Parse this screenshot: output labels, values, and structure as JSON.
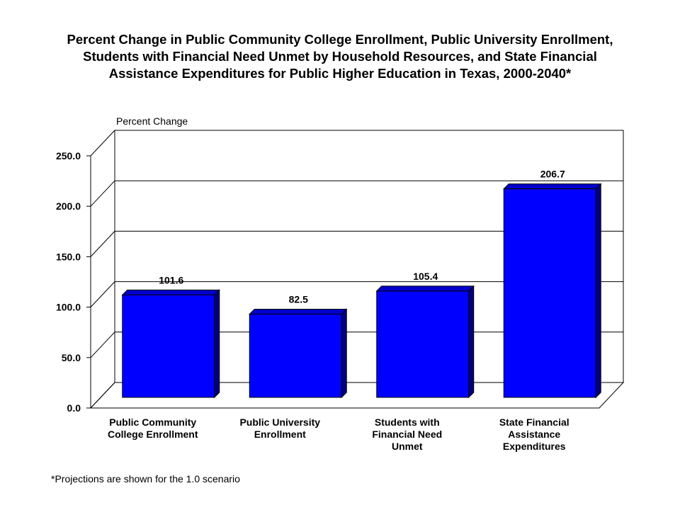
{
  "chart_data": {
    "type": "bar",
    "title_lines": [
      "Percent Change in Public Community College Enrollment, Public University Enrollment,",
      "Students with Financial Need Unmet by Household Resources, and State Financial",
      "Assistance Expenditures for Public Higher Education in Texas, 2000-2040*"
    ],
    "ylabel": "Percent Change",
    "xlabel": "",
    "categories": [
      [
        "Public Community",
        "College Enrollment"
      ],
      [
        "Public University",
        "Enrollment"
      ],
      [
        "Students with",
        "Financial Need",
        "Unmet"
      ],
      [
        "State Financial",
        "Assistance",
        "Expenditures"
      ]
    ],
    "values": [
      101.6,
      82.5,
      105.4,
      206.7
    ],
    "value_labels": [
      "101.6",
      "82.5",
      "105.4",
      "206.7"
    ],
    "yticks": [
      "0.0",
      "50.0",
      "100.0",
      "150.0",
      "200.0",
      "250.0"
    ],
    "ylim": [
      0,
      250
    ],
    "grid": true,
    "bar_color": "#0000ff",
    "bar_side_color": "#000080",
    "bar_top_color": "#0000cc",
    "footnote": "*Projections are shown for the 1.0 scenario"
  }
}
